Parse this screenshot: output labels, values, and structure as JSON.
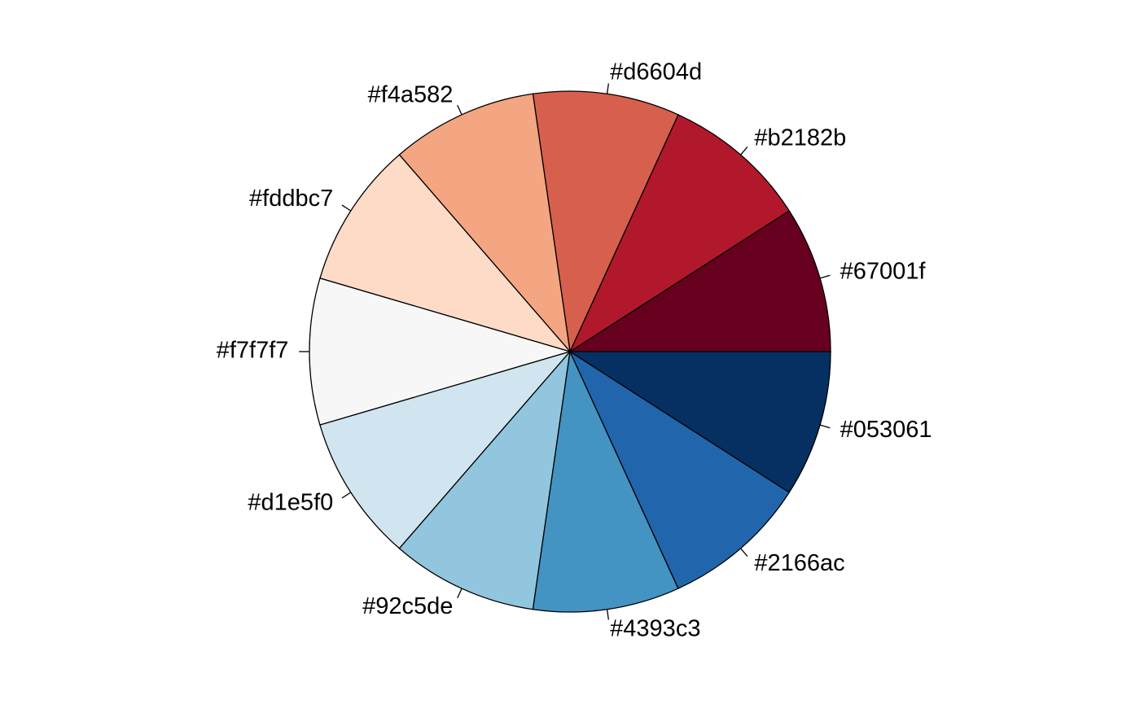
{
  "chart_data": {
    "type": "pie",
    "title": "",
    "start_angle_deg": 0,
    "direction": "counterclockwise",
    "slices": [
      {
        "label": "#67001f",
        "value": 1,
        "color": "#67001f"
      },
      {
        "label": "#b2182b",
        "value": 1,
        "color": "#b2182b"
      },
      {
        "label": "#d6604d",
        "value": 1,
        "color": "#d6604d"
      },
      {
        "label": "#f4a582",
        "value": 1,
        "color": "#f4a582"
      },
      {
        "label": "#fddbc7",
        "value": 1,
        "color": "#fddbc7"
      },
      {
        "label": "#f7f7f7",
        "value": 1,
        "color": "#f7f7f7"
      },
      {
        "label": "#d1e5f0",
        "value": 1,
        "color": "#d1e5f0"
      },
      {
        "label": "#92c5de",
        "value": 1,
        "color": "#92c5de"
      },
      {
        "label": "#4393c3",
        "value": 1,
        "color": "#4393c3"
      },
      {
        "label": "#2166ac",
        "value": 1,
        "color": "#2166ac"
      },
      {
        "label": "#053061",
        "value": 1,
        "color": "#053061"
      }
    ]
  }
}
